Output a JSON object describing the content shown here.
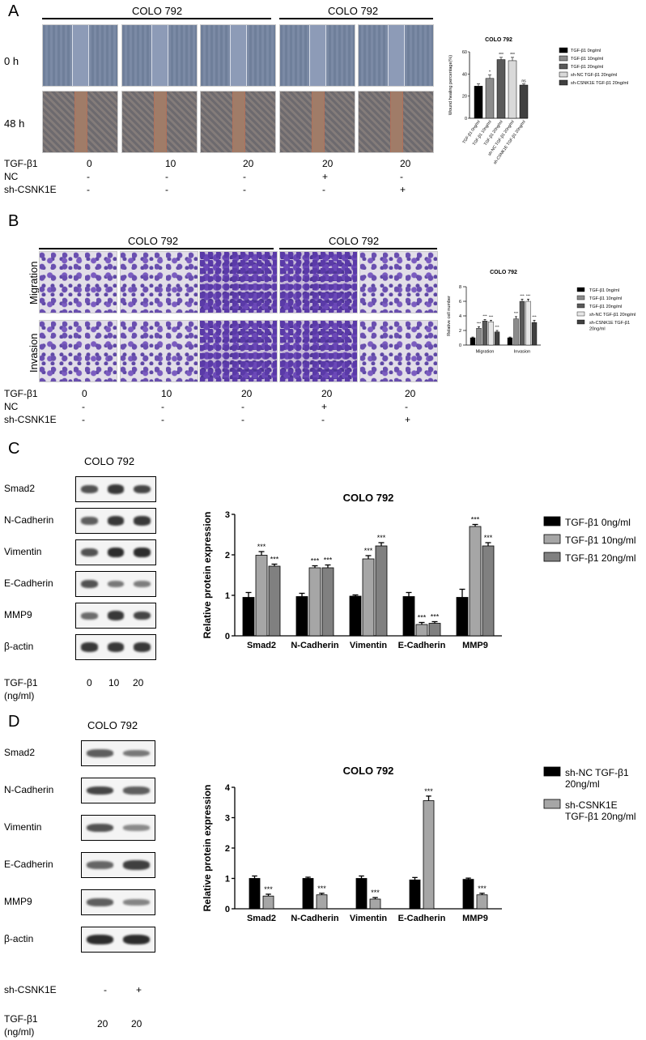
{
  "panels": {
    "A": "A",
    "B": "B",
    "C": "C",
    "D": "D"
  },
  "panel_a": {
    "groups": [
      "COLO 792",
      "COLO 792"
    ],
    "rows": [
      "0 h",
      "48 h"
    ],
    "treat_labels": [
      "TGF-β1",
      "NC",
      "sh-CSNK1E"
    ],
    "tgf": [
      "0",
      "10",
      "20",
      "20",
      "20"
    ],
    "nc": [
      "-",
      "-",
      "-",
      "+",
      "-"
    ],
    "sh": [
      "-",
      "-",
      "-",
      "-",
      "+"
    ]
  },
  "panel_b": {
    "groups": [
      "COLO 792",
      "COLO 792"
    ],
    "rows": [
      "Migration",
      "Invasion"
    ],
    "treat_labels": [
      "TGF-β1",
      "NC",
      "sh-CSNK1E"
    ],
    "tgf": [
      "0",
      "10",
      "20",
      "20",
      "20"
    ],
    "nc": [
      "-",
      "-",
      "-",
      "+",
      "-"
    ],
    "sh": [
      "-",
      "-",
      "-",
      "-",
      "+"
    ]
  },
  "panel_c": {
    "title": "COLO 792",
    "blots": [
      "Smad2",
      "N-Cadherin",
      "Vimentin",
      "E-Cadherin",
      "MMP9",
      "β-actin"
    ],
    "dose_label_1": "TGF-β1",
    "dose_label_2": "(ng/ml)",
    "doses": [
      "0",
      "10",
      "20"
    ]
  },
  "panel_d": {
    "title": "COLO 792",
    "blots": [
      "Smad2",
      "N-Cadherin",
      "Vimentin",
      "E-Cadherin",
      "MMP9",
      "β-actin"
    ],
    "sh_label": "sh-CSNK1E",
    "sh": [
      "-",
      "+"
    ],
    "dose_label_1": "TGF-β1",
    "dose_label_2": "(ng/ml)",
    "doses": [
      "20",
      "20"
    ]
  },
  "colors": {
    "black": "#000000",
    "dark_gray": "#595959",
    "mid_gray": "#8c8c8c",
    "light_gray": "#bfbfbf",
    "white": "#ffffff"
  },
  "chart_data": [
    {
      "id": "A",
      "type": "bar",
      "title": "COLO 792",
      "ylabel": "Wound healing percentage(%)",
      "ylim": [
        0,
        60
      ],
      "yticks": [
        0,
        20,
        40,
        60
      ],
      "categories": [
        "TGF-β1 0ng/ml",
        "TGF-β1 10ng/ml",
        "TGF-β1 20ng/ml",
        "sh-NC TGF-β1 20ng/ml",
        "sh-CSNK1E TGF-β1 20ng/ml"
      ],
      "values": [
        29,
        36,
        53,
        52,
        30
      ],
      "errors": [
        2,
        3,
        2,
        3,
        1
      ],
      "annotations": [
        "",
        "*",
        "***",
        "***",
        "ns"
      ],
      "legend": [
        "TGF-β1 0ng/ml",
        "TGF-β1 10ng/ml",
        "TGF-β1 20ng/ml",
        "sh-NC TGF-β1 20ng/ml",
        "sh-CSNK1E TGF-β1 20ng/ml"
      ],
      "legend_position": "right"
    },
    {
      "id": "B",
      "type": "bar",
      "title": "COLO 792",
      "ylabel": "Relative cell number",
      "ylim": [
        0,
        8
      ],
      "yticks": [
        0,
        2,
        4,
        6,
        8
      ],
      "categories": [
        "Migration",
        "Invasion"
      ],
      "series": [
        {
          "name": "TGF-β1 0ng/ml",
          "values": [
            1.0,
            1.0
          ],
          "errors": [
            0.1,
            0.1
          ],
          "annotations": [
            "",
            ""
          ]
        },
        {
          "name": "TGF-β1 10ng/ml",
          "values": [
            2.3,
            3.6
          ],
          "errors": [
            0.2,
            0.3
          ],
          "annotations": [
            "***",
            "***"
          ]
        },
        {
          "name": "TGF-β1 20ng/ml",
          "values": [
            3.3,
            6.0
          ],
          "errors": [
            0.2,
            0.3
          ],
          "annotations": [
            "***",
            "***"
          ]
        },
        {
          "name": "sh-NC TGF-β1 20ng/ml",
          "values": [
            3.2,
            6.0
          ],
          "errors": [
            0.2,
            0.3
          ],
          "annotations": [
            "***",
            "***"
          ]
        },
        {
          "name": "sh-CSNK1E TGF-β1 20ng/ml",
          "values": [
            1.8,
            3.1
          ],
          "errors": [
            0.2,
            0.3
          ],
          "annotations": [
            "***",
            "***"
          ]
        }
      ],
      "legend_position": "right"
    },
    {
      "id": "C",
      "type": "bar",
      "title": "COLO 792",
      "ylabel": "Relative protein expression",
      "ylim": [
        0,
        3
      ],
      "yticks": [
        0,
        1,
        2,
        3
      ],
      "categories": [
        "Smad2",
        "N-Cadherin",
        "Vimentin",
        "E-Cadherin",
        "MMP9"
      ],
      "series": [
        {
          "name": "TGF-β1 0ng/ml",
          "values": [
            0.95,
            0.97,
            0.98,
            0.97,
            0.95
          ],
          "errors": [
            0.12,
            0.08,
            0.03,
            0.1,
            0.2
          ],
          "annotations": [
            "",
            "",
            "",
            "",
            ""
          ]
        },
        {
          "name": "TGF-β1 10ng/ml",
          "values": [
            1.99,
            1.68,
            1.9,
            0.28,
            2.7
          ],
          "errors": [
            0.09,
            0.05,
            0.08,
            0.05,
            0.05
          ],
          "annotations": [
            "***",
            "***",
            "***",
            "***",
            "***"
          ]
        },
        {
          "name": "TGF-β1 20ng/ml",
          "values": [
            1.72,
            1.68,
            2.22,
            0.31,
            2.22
          ],
          "errors": [
            0.05,
            0.07,
            0.08,
            0.04,
            0.08
          ],
          "annotations": [
            "***",
            "***",
            "***",
            "***",
            "***"
          ]
        }
      ],
      "legend_position": "right"
    },
    {
      "id": "D",
      "type": "bar",
      "title": "COLO 792",
      "ylabel": "Relative protein expression",
      "ylim": [
        0,
        4
      ],
      "yticks": [
        0,
        1,
        2,
        3,
        4
      ],
      "categories": [
        "Smad2",
        "N-Cadherin",
        "Vimentin",
        "E-Cadherin",
        "MMP9"
      ],
      "series": [
        {
          "name": "sh-NC TGF-β1 20ng/ml",
          "values": [
            1.0,
            1.0,
            1.0,
            0.95,
            0.97
          ],
          "errors": [
            0.08,
            0.04,
            0.08,
            0.08,
            0.04
          ],
          "annotations": [
            "",
            "",
            "",
            "",
            ""
          ]
        },
        {
          "name": "sh-CSNK1E TGF-β1 20ng/ml",
          "values": [
            0.42,
            0.46,
            0.32,
            3.56,
            0.46
          ],
          "errors": [
            0.06,
            0.05,
            0.05,
            0.15,
            0.05
          ],
          "annotations": [
            "***",
            "***",
            "***",
            "***",
            "***"
          ]
        }
      ],
      "legend_position": "right"
    }
  ]
}
